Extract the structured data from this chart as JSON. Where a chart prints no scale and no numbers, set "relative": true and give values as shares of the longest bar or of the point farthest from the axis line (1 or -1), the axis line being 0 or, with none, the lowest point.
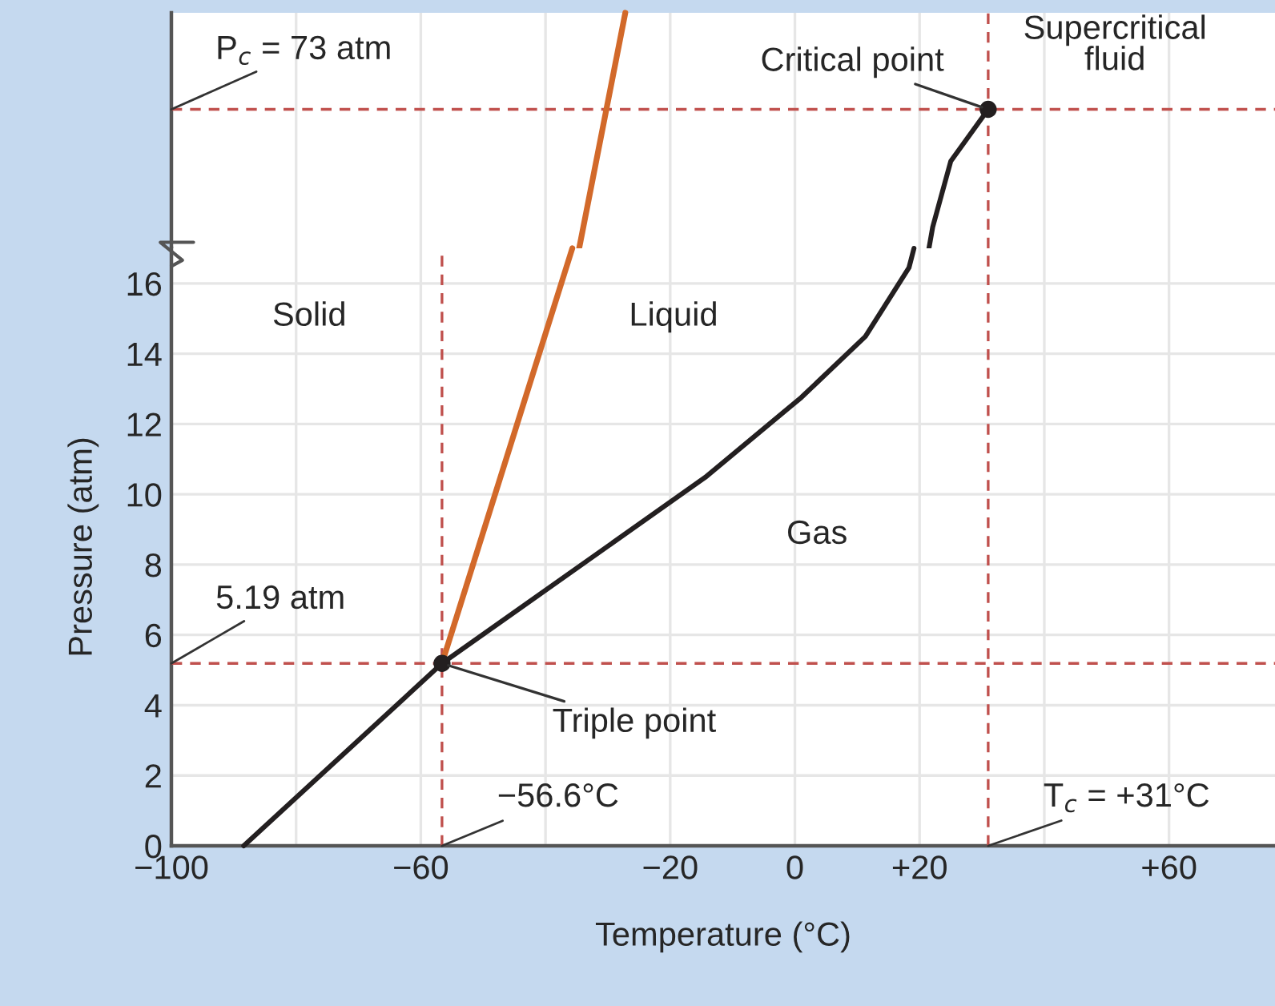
{
  "chart_data": [
    {
      "type": "line",
      "relative": true,
      "xlim": [
        -100,
        77
      ],
      "xticks": [
        {
          "value": -100,
          "label": null
        },
        {
          "value": -80,
          "label": null
        },
        {
          "value": -60,
          "label": null
        },
        {
          "value": -40,
          "label": null
        },
        {
          "value": -20,
          "label": null
        },
        {
          "value": 0,
          "label": null
        },
        {
          "value": 20,
          "label": null
        },
        {
          "value": 40,
          "label": null
        },
        {
          "value": 60,
          "label": null
        }
      ],
      "tick_labels": false,
      "grid": "x",
      "series": [
        {
          "color": "#d2692a",
          "x": [
            -34.6,
            -27.2
          ],
          "values": [
            0,
            1
          ]
        },
        {
          "color": "#231f20",
          "x": [
            21.5,
            22.1,
            25.0,
            31
          ],
          "values": [
            0,
            0.09,
            0.37,
            0.59
          ]
        },
        {
          "type": "scatter",
          "color": "#231f20",
          "marker": "circle",
          "x": [
            31
          ],
          "values": [
            0.59
          ]
        }
      ],
      "ref_lines": [
        {
          "axis": "y",
          "value": 0.59,
          "color": "#c0504d",
          "line_style": "dashed"
        },
        {
          "axis": "x",
          "value": 31,
          "color": "#c0504d",
          "line_style": "dashed"
        }
      ],
      "annotations": [
        {
          "text": "Critical point",
          "x": 31,
          "y": 0.59
        },
        "P$_{c}$ = 73 atm",
        "Supercritical\nfluid"
      ]
    },
    {
      "type": "line",
      "xlim": [
        -100,
        77
      ],
      "ylim": [
        0,
        17
      ],
      "xlabel": "Temperature (°C)",
      "ylabel": "Pressure (atm)",
      "xticks": [
        {
          "value": -100,
          "label": "−100"
        },
        {
          "value": -80,
          "label": null
        },
        {
          "value": -60,
          "label": "−60"
        },
        {
          "value": -40,
          "label": null
        },
        {
          "value": -20,
          "label": "−20"
        },
        {
          "value": 0,
          "label": "0"
        },
        {
          "value": 20,
          "label": "+20"
        },
        {
          "value": 40,
          "label": null
        },
        {
          "value": 60,
          "label": "+60"
        }
      ],
      "yticks": [
        0,
        2,
        4,
        6,
        8,
        10,
        12,
        14,
        16
      ],
      "grid": true,
      "series": [
        {
          "color": "#d2692a",
          "x": [
            -56.6,
            -35.7
          ],
          "values": [
            5.19,
            17
          ]
        },
        {
          "color": "#231f20",
          "x": [
            -88.4,
            -56.6,
            -14.4,
            1.05,
            11.3,
            18.3,
            19.1
          ],
          "values": [
            0,
            5.19,
            10.48,
            12.76,
            14.49,
            16.45,
            17
          ]
        },
        {
          "type": "scatter",
          "color": "#231f20",
          "marker": "circle",
          "x": [
            -56.6
          ],
          "values": [
            5.19
          ]
        }
      ],
      "ref_lines": [
        {
          "axis": "y",
          "value": 5.19,
          "label": "5.19 atm",
          "color": "#c0504d",
          "line_style": "dashed"
        },
        {
          "axis": "x",
          "value": -56.6,
          "label": "−56.6°C",
          "color": "#c0504d",
          "line_style": "dashed"
        },
        {
          "axis": "x",
          "value": 31,
          "label": "T$_{c}$ = +31°C",
          "color": "#c0504d",
          "line_style": "dashed"
        }
      ],
      "annotations": [
        {
          "text": "Triple point",
          "x": -56.6,
          "y": 5.19
        },
        "Solid",
        "Liquid",
        "Gas"
      ]
    }
  ]
}
